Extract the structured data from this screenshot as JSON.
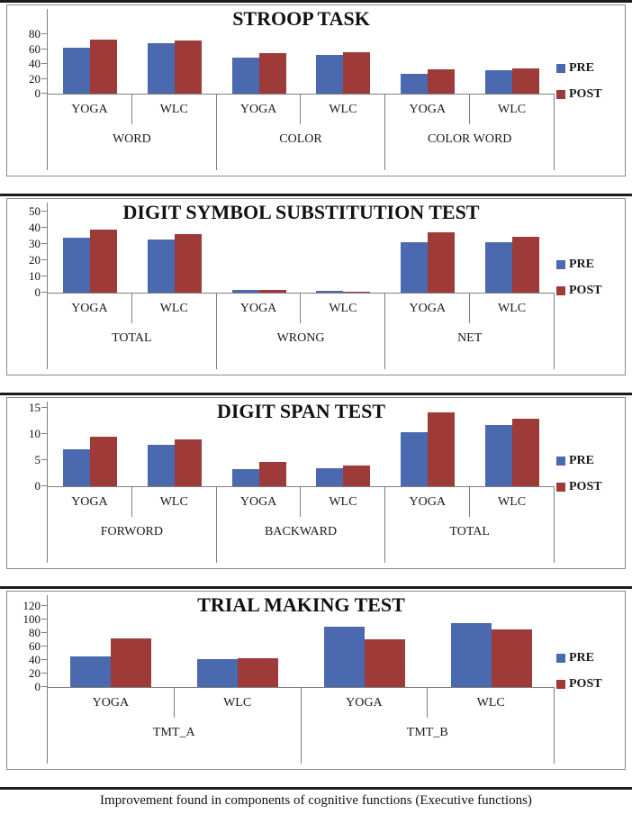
{
  "caption": "Improvement found in components of cognitive functions (Executive functions)",
  "colors": {
    "pre": "#4a69ae",
    "post": "#9e3a38",
    "axis": "#7f7f7f"
  },
  "chart_data": [
    {
      "type": "bar",
      "title": "STROOP TASK",
      "ylim": [
        0,
        80
      ],
      "yticks": [
        0,
        20,
        40,
        60,
        80
      ],
      "grid": false,
      "legend_position": "right",
      "groups": [
        "WORD",
        "COLOR",
        "COLOR WORD"
      ],
      "categories": [
        "YOGA",
        "WLC",
        "YOGA",
        "WLC",
        "YOGA",
        "WLC"
      ],
      "series": [
        {
          "name": "PRE",
          "values": [
            62,
            68,
            48,
            52,
            27,
            32
          ]
        },
        {
          "name": "POST",
          "values": [
            73,
            71,
            54,
            56,
            33,
            34
          ]
        }
      ]
    },
    {
      "type": "bar",
      "title": "DIGIT SYMBOL SUBSTITUTION TEST",
      "ylim": [
        0,
        50
      ],
      "yticks": [
        0,
        10,
        20,
        30,
        40,
        50
      ],
      "grid": false,
      "legend_position": "right",
      "groups": [
        "TOTAL",
        "WRONG",
        "NET"
      ],
      "categories": [
        "YOGA",
        "WLC",
        "YOGA",
        "WLC",
        "YOGA",
        "WLC"
      ],
      "series": [
        {
          "name": "PRE",
          "values": [
            34,
            33,
            1.5,
            1.2,
            31,
            31
          ]
        },
        {
          "name": "POST",
          "values": [
            39,
            36,
            1.5,
            0.8,
            37,
            34.5
          ]
        }
      ]
    },
    {
      "type": "bar",
      "title": "DIGIT SPAN TEST",
      "ylim": [
        0,
        15
      ],
      "yticks": [
        0,
        5,
        10,
        15
      ],
      "grid": false,
      "legend_position": "right",
      "groups": [
        "FORWORD",
        "BACKWARD",
        "TOTAL"
      ],
      "categories": [
        "YOGA",
        "WLC",
        "YOGA",
        "WLC",
        "YOGA",
        "WLC"
      ],
      "series": [
        {
          "name": "PRE",
          "values": [
            7,
            8,
            3.3,
            3.5,
            10.3,
            11.7
          ]
        },
        {
          "name": "POST",
          "values": [
            9.4,
            8.9,
            4.7,
            4,
            14.2,
            13
          ]
        }
      ]
    },
    {
      "type": "bar",
      "title": "TRIAL MAKING TEST",
      "ylim": [
        0,
        120
      ],
      "yticks": [
        0,
        20,
        40,
        60,
        80,
        100,
        120
      ],
      "grid": false,
      "legend_position": "right",
      "groups": [
        "TMT_A",
        "TMT_B"
      ],
      "categories": [
        "YOGA",
        "WLC",
        "YOGA",
        "WLC"
      ],
      "series": [
        {
          "name": "PRE",
          "values": [
            45,
            41,
            89,
            95
          ]
        },
        {
          "name": "POST",
          "values": [
            72,
            43,
            71,
            85
          ]
        }
      ]
    }
  ]
}
